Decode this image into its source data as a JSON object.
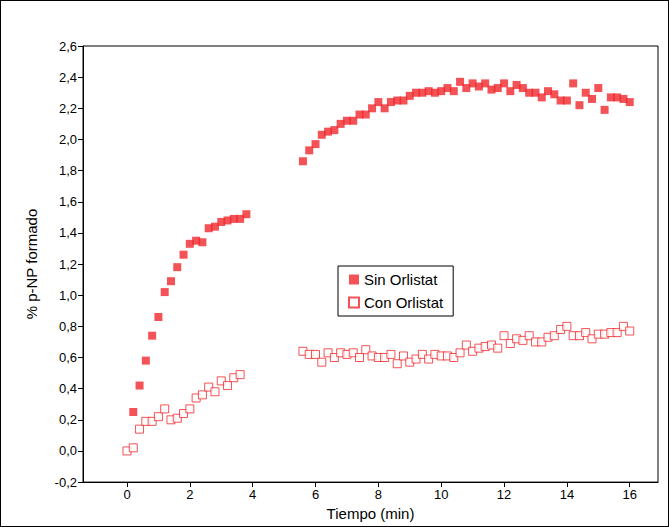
{
  "chart_data": {
    "type": "scatter",
    "x_label": "Tiempo (min)",
    "y_label": "% p-NP formado",
    "xlim": [
      -1.4,
      16.9
    ],
    "xticks": [
      0,
      2,
      4,
      6,
      8,
      10,
      12,
      14,
      16
    ],
    "ylim": [
      -0.2,
      2.6
    ],
    "yticks": [
      {
        "value": -0.2,
        "label": "-0,2"
      },
      {
        "value": 0,
        "label": "0,0"
      },
      {
        "value": 0.2,
        "label": "0,2"
      },
      {
        "value": 0.4,
        "label": "0,4"
      },
      {
        "value": 0.6,
        "label": "0,6"
      },
      {
        "value": 0.8,
        "label": "0,8"
      },
      {
        "value": 1.0,
        "label": "1,0"
      },
      {
        "value": 1.2,
        "label": "1,2"
      },
      {
        "value": 1.4,
        "label": "1,4"
      },
      {
        "value": 1.6,
        "label": "1,6"
      },
      {
        "value": 1.8,
        "label": "1,8"
      },
      {
        "value": 2.0,
        "label": "2,0"
      },
      {
        "value": 2.2,
        "label": "2,2"
      },
      {
        "value": 2.4,
        "label": "2,4"
      },
      {
        "value": 2.6,
        "label": "2,6"
      }
    ],
    "grid": false,
    "legend": "center",
    "series": [
      {
        "name": "Sin Orlistat",
        "color": "#f0282d",
        "marker": "square",
        "x": [
          0.2,
          0.4,
          0.6,
          0.8,
          1.0,
          1.2,
          1.4,
          1.6,
          1.8,
          2.0,
          2.2,
          2.4,
          2.6,
          2.8,
          3.0,
          3.2,
          3.4,
          3.6,
          3.8,
          5.6,
          5.8,
          6.0,
          6.2,
          6.4,
          6.6,
          6.8,
          7.0,
          7.2,
          7.4,
          7.6,
          7.8,
          8.0,
          8.2,
          8.4,
          8.6,
          8.8,
          9.0,
          9.2,
          9.4,
          9.6,
          9.8,
          10.0,
          10.2,
          10.4,
          10.6,
          10.8,
          11.0,
          11.2,
          11.4,
          11.6,
          11.8,
          12.0,
          12.2,
          12.4,
          12.6,
          12.8,
          13.0,
          13.2,
          13.4,
          13.6,
          13.8,
          14.0,
          14.2,
          14.4,
          14.6,
          14.8,
          15.0,
          15.2,
          15.4,
          15.6,
          15.8,
          16.0
        ],
        "values": [
          0.25,
          0.42,
          0.58,
          0.74,
          0.86,
          1.02,
          1.09,
          1.18,
          1.26,
          1.33,
          1.35,
          1.34,
          1.43,
          1.44,
          1.47,
          1.48,
          1.49,
          1.49,
          1.52,
          1.86,
          1.93,
          1.97,
          2.03,
          2.05,
          2.06,
          2.1,
          2.12,
          2.12,
          2.16,
          2.16,
          2.2,
          2.24,
          2.2,
          2.24,
          2.25,
          2.25,
          2.28,
          2.3,
          2.3,
          2.31,
          2.3,
          2.31,
          2.33,
          2.31,
          2.37,
          2.33,
          2.36,
          2.34,
          2.36,
          2.32,
          2.33,
          2.36,
          2.31,
          2.35,
          2.33,
          2.3,
          2.3,
          2.27,
          2.31,
          2.29,
          2.25,
          2.25,
          2.36,
          2.22,
          2.3,
          2.26,
          2.33,
          2.19,
          2.27,
          2.27,
          2.26,
          2.24
        ]
      },
      {
        "name": "Con Orlistat",
        "color": "#f0282d",
        "marker": "open_square",
        "x": [
          0.0,
          0.2,
          0.4,
          0.6,
          0.8,
          1.0,
          1.2,
          1.4,
          1.6,
          1.8,
          2.0,
          2.2,
          2.4,
          2.6,
          2.8,
          3.0,
          3.2,
          3.4,
          3.6,
          5.6,
          5.8,
          6.0,
          6.2,
          6.4,
          6.6,
          6.8,
          7.0,
          7.2,
          7.4,
          7.6,
          7.8,
          8.0,
          8.2,
          8.4,
          8.6,
          8.8,
          9.0,
          9.2,
          9.4,
          9.6,
          9.8,
          10.0,
          10.2,
          10.4,
          10.6,
          10.8,
          11.0,
          11.2,
          11.4,
          11.6,
          11.8,
          12.0,
          12.2,
          12.4,
          12.6,
          12.8,
          13.0,
          13.2,
          13.4,
          13.6,
          13.8,
          14.0,
          14.2,
          14.4,
          14.6,
          14.8,
          15.0,
          15.2,
          15.4,
          15.6,
          15.8,
          16.0
        ],
        "values": [
          0.0,
          0.02,
          0.14,
          0.19,
          0.19,
          0.22,
          0.27,
          0.2,
          0.21,
          0.24,
          0.27,
          0.34,
          0.36,
          0.41,
          0.38,
          0.45,
          0.42,
          0.47,
          0.49,
          0.64,
          0.62,
          0.62,
          0.57,
          0.63,
          0.6,
          0.63,
          0.62,
          0.63,
          0.6,
          0.65,
          0.61,
          0.6,
          0.6,
          0.62,
          0.56,
          0.61,
          0.57,
          0.59,
          0.62,
          0.59,
          0.62,
          0.61,
          0.61,
          0.6,
          0.63,
          0.68,
          0.64,
          0.66,
          0.67,
          0.68,
          0.66,
          0.74,
          0.69,
          0.72,
          0.71,
          0.74,
          0.7,
          0.7,
          0.73,
          0.74,
          0.78,
          0.8,
          0.74,
          0.74,
          0.76,
          0.72,
          0.75,
          0.75,
          0.76,
          0.76,
          0.8,
          0.77
        ]
      }
    ]
  }
}
